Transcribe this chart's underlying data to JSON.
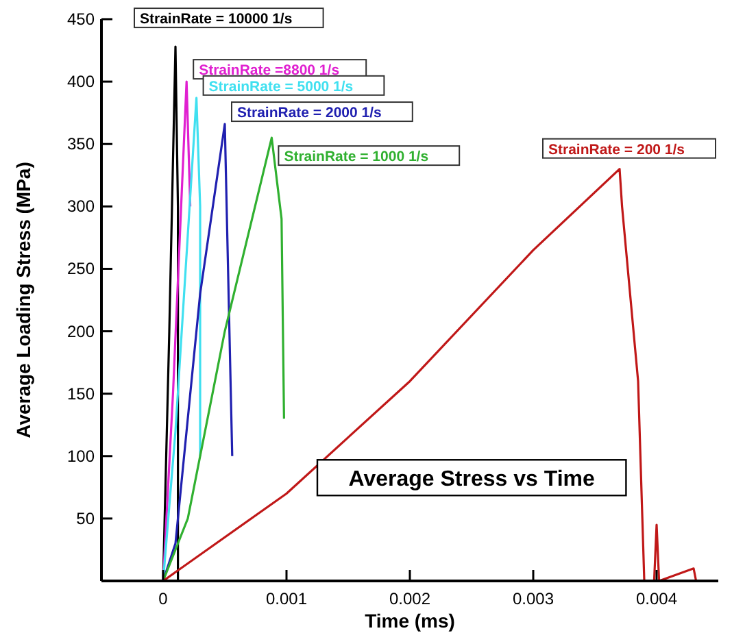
{
  "chart_data": {
    "type": "line",
    "title": "Average Stress vs Time",
    "xlabel": "Time (ms)",
    "ylabel": "Average Loading Stress (MPa)",
    "xlim": [
      -0.0005,
      0.0045
    ],
    "xticks": [
      0,
      0.001,
      0.002,
      0.003,
      0.004
    ],
    "ylim": [
      0,
      450
    ],
    "yticks": [
      {
        "value": 0,
        "label": null
      },
      50,
      100,
      150,
      200,
      250,
      300,
      350,
      400,
      450
    ],
    "grid": false,
    "legend": false,
    "marker": "none",
    "line_style": "solid",
    "series": [
      {
        "name": "StrainRate = 10000 1/s",
        "color": "#000000",
        "x": [
          0,
          5e-05,
          0.0001,
          0.00012,
          0.00012
        ],
        "values": [
          0,
          200,
          428,
          300,
          0
        ]
      },
      {
        "name": "StrainRate =8800 1/s",
        "color": "#e020d0",
        "x": [
          0,
          8e-05,
          0.00019,
          0.00022
        ],
        "values": [
          0,
          150,
          400,
          300
        ]
      },
      {
        "name": "StrainRate = 5000 1/s",
        "color": "#40e0f0",
        "x": [
          0,
          0.0001,
          0.00027,
          0.0003,
          0.0003
        ],
        "values": [
          0,
          120,
          387,
          300,
          100
        ]
      },
      {
        "name": "StrainRate = 2000 1/s",
        "color": "#2020b0",
        "x": [
          0,
          0.0001,
          0.0003,
          0.0005,
          0.00056
        ],
        "values": [
          0,
          30,
          230,
          366,
          100
        ]
      },
      {
        "name": "StrainRate = 1000 1/s",
        "color": "#30b030",
        "x": [
          0,
          0.0002,
          0.0005,
          0.00088,
          0.00096,
          0.00098
        ],
        "values": [
          0,
          50,
          200,
          355,
          290,
          130
        ]
      },
      {
        "name": "StrainRate = 200 1/s",
        "color": "#c01818",
        "x": [
          0,
          0.001,
          0.002,
          0.003,
          0.0037,
          0.00372,
          0.00385,
          0.0039,
          0.00398,
          0.004,
          0.00402,
          0.0043,
          0.00432
        ],
        "values": [
          0,
          70,
          160,
          265,
          330,
          300,
          160,
          0,
          0,
          45,
          0,
          10,
          0
        ]
      }
    ]
  }
}
